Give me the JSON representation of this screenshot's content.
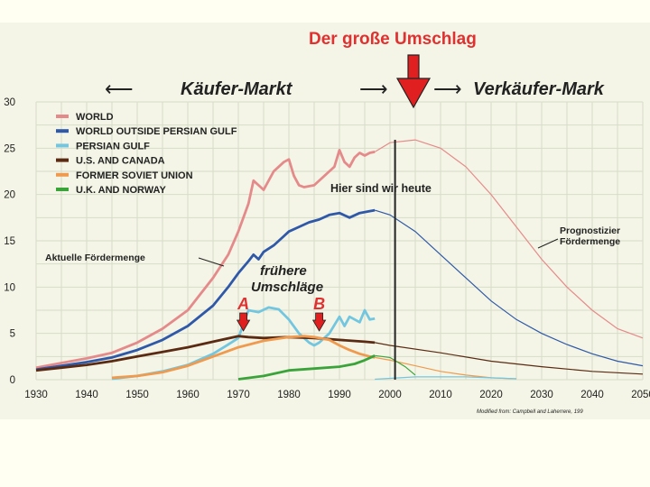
{
  "chart_data": {
    "type": "line",
    "title": "Der große Umschlag",
    "header_left": "Käufer-Markt",
    "header_right": "Verkäufer-Mark",
    "xlim": [
      1930,
      2050
    ],
    "ylim": [
      0,
      30
    ],
    "x_ticks": [
      "1930",
      "1940",
      "1950",
      "1960",
      "1970",
      "1980",
      "1990",
      "2000",
      "2010",
      "2020",
      "2030",
      "2040",
      "2050"
    ],
    "y_ticks": [
      "0",
      "5",
      "10",
      "15",
      "20",
      "25",
      "30"
    ],
    "grid": true,
    "legend_position": "top-left",
    "colors": {
      "world": "#e58a8a",
      "world_outside": "#2f59a8",
      "persian_gulf": "#72c6e0",
      "us_canada": "#5a2a12",
      "soviet": "#ef9a4e",
      "uk_norway": "#3aa43a",
      "arrow": "#e02020",
      "accent_text": "#e03030"
    },
    "series": [
      {
        "name": "WORLD",
        "key": "world",
        "x": [
          1930,
          1935,
          1940,
          1945,
          1950,
          1955,
          1960,
          1965,
          1968,
          1970,
          1972,
          1973,
          1974,
          1975,
          1977,
          1979,
          1980,
          1981,
          1982,
          1983,
          1985,
          1987,
          1988,
          1989,
          1990,
          1991,
          1992,
          1993,
          1994,
          1995,
          1996,
          1997
        ],
        "y": [
          1.3,
          1.8,
          2.3,
          2.9,
          4.0,
          5.5,
          7.5,
          11.0,
          13.5,
          16.0,
          19.0,
          21.5,
          21.0,
          20.5,
          22.5,
          23.5,
          23.8,
          22.0,
          21.0,
          20.8,
          21.0,
          22.0,
          22.5,
          23.0,
          24.8,
          23.5,
          23.0,
          24.0,
          24.5,
          24.2,
          24.5,
          24.6
        ]
      },
      {
        "name": "WORLD OUTSIDE PERSIAN GULF",
        "key": "world_outside",
        "x": [
          1930,
          1935,
          1940,
          1945,
          1950,
          1955,
          1960,
          1965,
          1968,
          1970,
          1972,
          1973,
          1974,
          1975,
          1977,
          1979,
          1980,
          1982,
          1984,
          1986,
          1988,
          1990,
          1992,
          1994,
          1996,
          1997
        ],
        "y": [
          1.1,
          1.5,
          1.9,
          2.4,
          3.2,
          4.3,
          5.8,
          8.0,
          10.0,
          11.5,
          12.8,
          13.5,
          13.0,
          13.8,
          14.5,
          15.5,
          16.0,
          16.5,
          17.0,
          17.3,
          17.8,
          18.0,
          17.5,
          18.0,
          18.2,
          18.3
        ]
      },
      {
        "name": "PERSIAN GULF",
        "key": "persian_gulf",
        "x": [
          1945,
          1950,
          1955,
          1960,
          1965,
          1968,
          1970,
          1972,
          1974,
          1976,
          1978,
          1980,
          1982,
          1984,
          1985,
          1986,
          1988,
          1990,
          1991,
          1992,
          1994,
          1995,
          1996,
          1997
        ],
        "y": [
          0.1,
          0.4,
          0.9,
          1.6,
          2.8,
          3.8,
          4.5,
          7.5,
          7.3,
          7.8,
          7.6,
          6.5,
          5.0,
          4.0,
          3.7,
          4.0,
          5.0,
          6.8,
          5.8,
          6.8,
          6.2,
          7.5,
          6.5,
          6.6
        ]
      },
      {
        "name": "U.S. AND CANADA",
        "key": "us_canada",
        "x": [
          1930,
          1935,
          1940,
          1945,
          1950,
          1955,
          1960,
          1965,
          1970,
          1972,
          1975,
          1980,
          1985,
          1990,
          1995,
          1997
        ],
        "y": [
          1.0,
          1.3,
          1.6,
          2.0,
          2.5,
          3.0,
          3.5,
          4.1,
          4.7,
          4.6,
          4.5,
          4.6,
          4.5,
          4.3,
          4.1,
          4.0
        ]
      },
      {
        "name": "FORMER SOVIET UNION",
        "key": "soviet",
        "x": [
          1945,
          1950,
          1955,
          1960,
          1965,
          1970,
          1975,
          1980,
          1983,
          1985,
          1988,
          1990,
          1992,
          1994,
          1996,
          1997
        ],
        "y": [
          0.2,
          0.4,
          0.8,
          1.5,
          2.5,
          3.5,
          4.2,
          4.6,
          4.7,
          4.6,
          4.3,
          3.7,
          3.2,
          2.8,
          2.5,
          2.4
        ]
      },
      {
        "name": "U.K. AND NORWAY",
        "key": "uk_norway",
        "x": [
          1970,
          1975,
          1980,
          1985,
          1990,
          1993,
          1995,
          1997
        ],
        "y": [
          0.05,
          0.4,
          1.0,
          1.2,
          1.4,
          1.7,
          2.1,
          2.6
        ]
      }
    ],
    "forecast": [
      {
        "key": "world",
        "x": [
          1997,
          2000,
          2005,
          2010,
          2015,
          2020,
          2025,
          2030,
          2035,
          2040,
          2045,
          2050
        ],
        "y": [
          24.6,
          25.6,
          25.9,
          25.0,
          23.0,
          20.0,
          16.5,
          13.0,
          10.0,
          7.5,
          5.5,
          4.5
        ]
      },
      {
        "key": "world_outside",
        "x": [
          1997,
          2000,
          2005,
          2010,
          2015,
          2020,
          2025,
          2030,
          2035,
          2040,
          2045,
          2050
        ],
        "y": [
          18.3,
          17.8,
          16.0,
          13.5,
          11.0,
          8.5,
          6.5,
          5.0,
          3.8,
          2.8,
          2.0,
          1.5
        ]
      },
      {
        "key": "us_canada",
        "x": [
          1997,
          2000,
          2010,
          2020,
          2030,
          2040,
          2050
        ],
        "y": [
          4.0,
          3.7,
          2.9,
          2.0,
          1.4,
          0.9,
          0.6
        ]
      },
      {
        "key": "soviet",
        "x": [
          1997,
          2000,
          2005,
          2010,
          2015,
          2020,
          2025
        ],
        "y": [
          2.4,
          2.1,
          1.5,
          0.9,
          0.5,
          0.2,
          0.1
        ]
      },
      {
        "key": "uk_norway",
        "x": [
          1997,
          2000,
          2003,
          2005
        ],
        "y": [
          2.6,
          2.4,
          1.4,
          0.5
        ]
      },
      {
        "key": "persian_gulf",
        "x": [
          1997,
          2005,
          2015,
          2025
        ],
        "y": [
          0.05,
          0.3,
          0.3,
          0.1
        ]
      }
    ],
    "now_marker_x": 2001,
    "annotations": {
      "now": "Hier sind wir heute",
      "current_output": "Aktuelle Fördermenge",
      "forecast_line1": "Prognostizier",
      "forecast_line2": "Fördermenge",
      "earlier_line1": "frühere",
      "earlier_line2": "Umschläge",
      "mark_a": "A",
      "mark_b": "B",
      "source": "Modified from: Campbell and Laherrere, 199"
    },
    "marks": {
      "a_x": 1971,
      "b_x": 1986
    }
  }
}
